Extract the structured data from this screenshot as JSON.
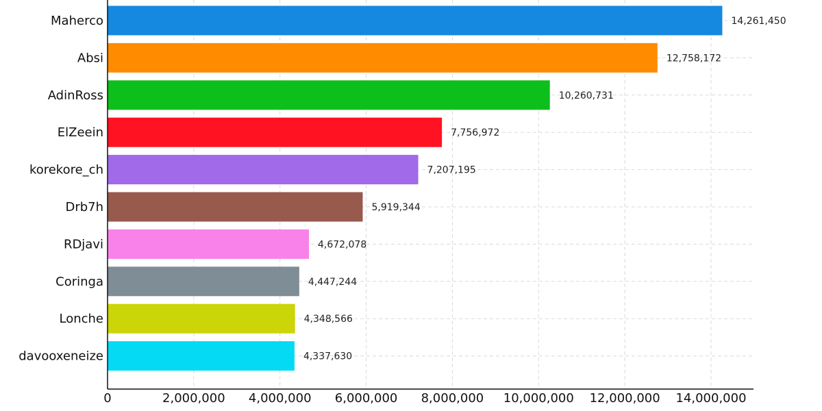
{
  "chart_data": {
    "type": "bar",
    "orientation": "horizontal",
    "categories": [
      "Maherco",
      "Absi",
      "AdinRoss",
      "ElZeein",
      "korekore_ch",
      "Drb7h",
      "RDjavi",
      "Coringa",
      "Lonche",
      "davooxeneize"
    ],
    "values": [
      14261450,
      12758172,
      10260731,
      7756972,
      7207195,
      5919344,
      4672078,
      4447244,
      4348566,
      4337630
    ],
    "value_labels": [
      "14,261,450",
      "12,758,172",
      "10,260,731",
      "7,756,972",
      "7,207,195",
      "5,919,344",
      "4,672,078",
      "4,447,244",
      "4,348,566",
      "4,337,630"
    ],
    "colors": [
      "#1589e0",
      "#ff8c00",
      "#0dbf1a",
      "#ff1323",
      "#a06ae8",
      "#985a4d",
      "#f982ea",
      "#7f8d97",
      "#cbd507",
      "#05daf5"
    ],
    "xlim": [
      0,
      15000000
    ],
    "x_ticks": [
      0,
      2000000,
      4000000,
      6000000,
      8000000,
      10000000,
      12000000,
      14000000
    ],
    "x_tick_labels": [
      "0",
      "2,000,000",
      "4,000,000",
      "6,000,000",
      "8,000,000",
      "10,000,000",
      "12,000,000",
      "14,000,000"
    ],
    "grid": true,
    "title": "",
    "xlabel": "",
    "ylabel": ""
  }
}
